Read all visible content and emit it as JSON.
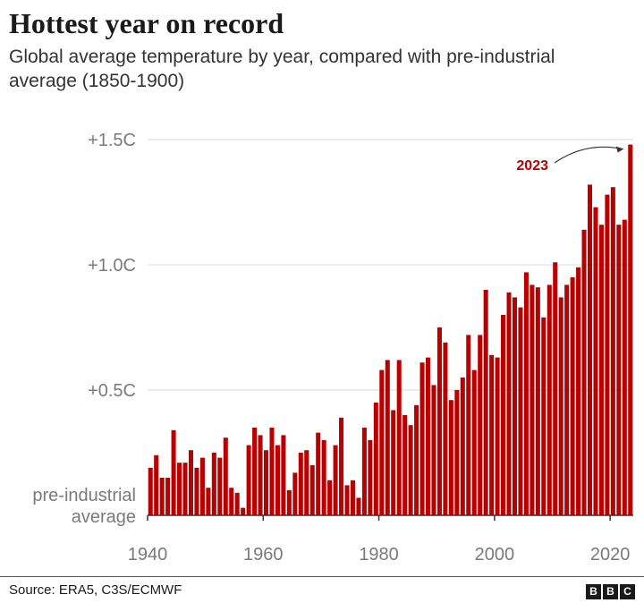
{
  "title": "Hottest year on record",
  "subtitle": "Global average temperature by year, compared with pre-industrial average (1850-1900)",
  "source": "Source: ERA5, C3S/ECMWF",
  "logo": [
    "B",
    "B",
    "C"
  ],
  "colors": {
    "bar": "#b80000",
    "grid": "#d9d9d9",
    "axis": "#333333",
    "tick_text": "#7a7a7a"
  },
  "chart_data": {
    "type": "bar",
    "title": "Hottest year on record",
    "xlabel": "",
    "ylabel": "",
    "x": [
      1940,
      1941,
      1942,
      1943,
      1944,
      1945,
      1946,
      1947,
      1948,
      1949,
      1950,
      1951,
      1952,
      1953,
      1954,
      1955,
      1956,
      1957,
      1958,
      1959,
      1960,
      1961,
      1962,
      1963,
      1964,
      1965,
      1966,
      1967,
      1968,
      1969,
      1970,
      1971,
      1972,
      1973,
      1974,
      1975,
      1976,
      1977,
      1978,
      1979,
      1980,
      1981,
      1982,
      1983,
      1984,
      1985,
      1986,
      1987,
      1988,
      1989,
      1990,
      1991,
      1992,
      1993,
      1994,
      1995,
      1996,
      1997,
      1998,
      1999,
      2000,
      2001,
      2002,
      2003,
      2004,
      2005,
      2006,
      2007,
      2008,
      2009,
      2010,
      2011,
      2012,
      2013,
      2014,
      2015,
      2016,
      2017,
      2018,
      2019,
      2020,
      2021,
      2022,
      2023
    ],
    "values": [
      0.19,
      0.24,
      0.15,
      0.15,
      0.34,
      0.21,
      0.21,
      0.26,
      0.19,
      0.23,
      0.11,
      0.25,
      0.23,
      0.31,
      0.11,
      0.09,
      0.03,
      0.28,
      0.35,
      0.32,
      0.26,
      0.35,
      0.28,
      0.32,
      0.1,
      0.17,
      0.25,
      0.26,
      0.2,
      0.33,
      0.3,
      0.14,
      0.28,
      0.39,
      0.12,
      0.14,
      0.07,
      0.35,
      0.3,
      0.45,
      0.58,
      0.62,
      0.42,
      0.62,
      0.4,
      0.36,
      0.44,
      0.61,
      0.63,
      0.52,
      0.75,
      0.69,
      0.46,
      0.5,
      0.55,
      0.72,
      0.58,
      0.72,
      0.9,
      0.64,
      0.63,
      0.8,
      0.89,
      0.87,
      0.83,
      0.97,
      0.92,
      0.91,
      0.79,
      0.92,
      1.01,
      0.87,
      0.92,
      0.95,
      0.99,
      1.14,
      1.32,
      1.23,
      1.16,
      1.28,
      1.31,
      1.16,
      1.18,
      1.48
    ],
    "ylim": [
      0,
      1.5
    ],
    "y_ticks": [
      {
        "value": 0,
        "label": "pre-industrial\naverage"
      },
      {
        "value": 0.5,
        "label": "+0.5C"
      },
      {
        "value": 1.0,
        "label": "+1.0C"
      },
      {
        "value": 1.5,
        "label": "+1.5C"
      }
    ],
    "x_ticks": [
      1940,
      1960,
      1980,
      2000,
      2020
    ],
    "annotations": [
      {
        "x": 2023,
        "text": "2023"
      }
    ],
    "grid": true
  }
}
